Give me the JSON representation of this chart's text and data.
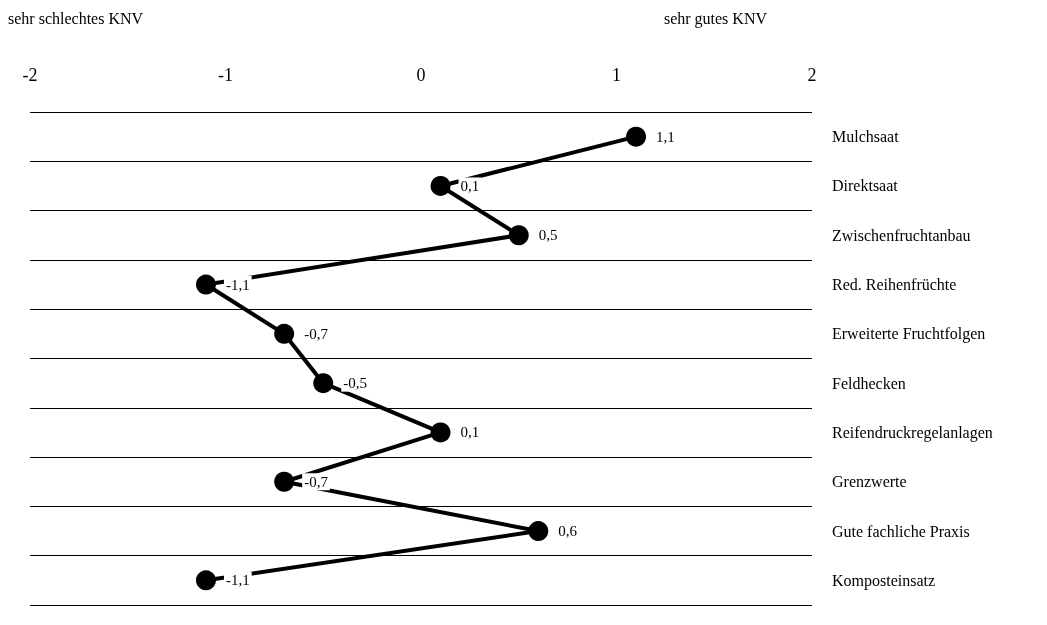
{
  "chart_data": {
    "type": "line",
    "orientation": "horizontal",
    "categories": [
      "Mulchsaat",
      "Direktsaat",
      "Zwischenfruchtanbau",
      "Red. Reihenfrüchte",
      "Erweiterte Fruchtfolgen",
      "Feldhecken",
      "Reifendruckregelanlagen",
      "Grenzwerte",
      "Gute fachliche Praxis",
      "Komposteinsatz"
    ],
    "series": [
      {
        "color": "#000000",
        "values": [
          1.1,
          0.1,
          0.5,
          -1.1,
          -0.7,
          -0.5,
          0.1,
          -0.7,
          0.6,
          -1.1
        ],
        "value_labels": [
          "1,1",
          "0,1",
          "0,5",
          "-1,1",
          "-0,7",
          "-0,5",
          "0,1",
          "-0,7",
          "0,6",
          "-1,1"
        ]
      }
    ],
    "xlim": [
      -2,
      2
    ],
    "xticks": [
      -2,
      -1,
      0,
      1,
      2
    ],
    "grid": "y",
    "marker": "circle",
    "line_style": "solid",
    "annotations": [
      "sehr schlechtes KNV",
      "sehr gutes KNV"
    ]
  }
}
